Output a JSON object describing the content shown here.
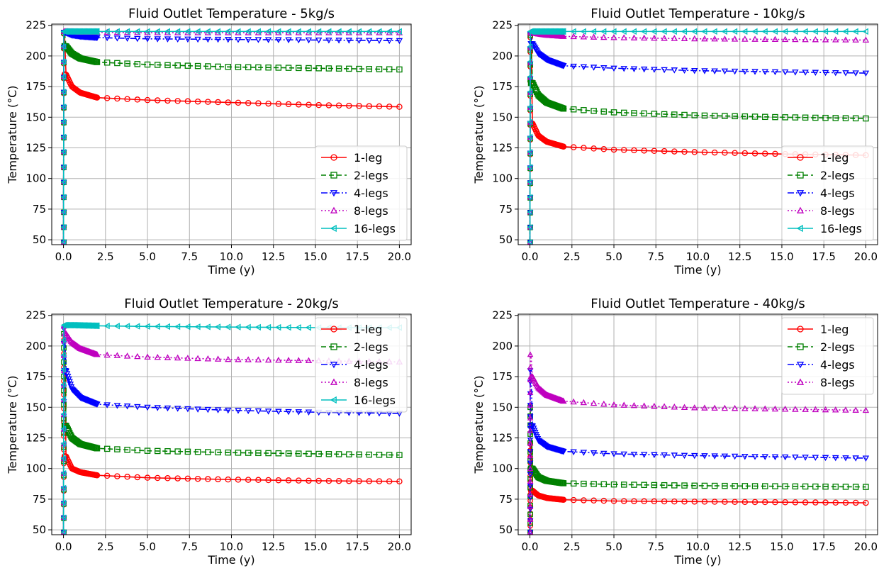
{
  "chart_data": [
    {
      "type": "line",
      "title": "Fluid Outlet Temperature - 5kg/s",
      "xlabel": "Time (y)",
      "ylabel": "Temperature (°C)",
      "xlim": [
        -0.7,
        20.7
      ],
      "ylim": [
        46,
        226
      ],
      "xticks": [
        0.0,
        2.5,
        5.0,
        7.5,
        10.0,
        12.5,
        15.0,
        17.5,
        20.0
      ],
      "xtick_labels": [
        "0.0",
        "2.5",
        "5.0",
        "7.5",
        "10.0",
        "12.5",
        "15.0",
        "17.5",
        "20.0"
      ],
      "yticks": [
        50,
        75,
        100,
        125,
        150,
        175,
        200,
        225
      ],
      "ytick_labels": [
        "50",
        "75",
        "100",
        "125",
        "150",
        "175",
        "200",
        "225"
      ],
      "grid": true,
      "legend": "lower-right",
      "series": [
        {
          "name": "1-leg",
          "peak": 218,
          "points": [
            [
              0.15,
              185
            ],
            [
              0.5,
              175
            ],
            [
              1,
              170
            ],
            [
              2,
              166
            ],
            [
              5,
              164
            ],
            [
              10,
              162
            ],
            [
              15,
              160
            ],
            [
              20,
              158.5
            ]
          ]
        },
        {
          "name": "2-legs",
          "peak": 219,
          "points": [
            [
              0.15,
              208
            ],
            [
              0.5,
              202
            ],
            [
              1,
              198
            ],
            [
              2,
              195
            ],
            [
              5,
              193
            ],
            [
              10,
              191
            ],
            [
              15,
              190
            ],
            [
              20,
              189
            ]
          ]
        },
        {
          "name": "4-legs",
          "peak": 219.5,
          "points": [
            [
              0.15,
              219
            ],
            [
              0.5,
              217
            ],
            [
              1,
              216
            ],
            [
              2,
              215
            ],
            [
              5,
              214
            ],
            [
              10,
              213.5
            ],
            [
              15,
              213
            ],
            [
              20,
              212.5
            ]
          ]
        },
        {
          "name": "8-legs",
          "peak": 220,
          "points": [
            [
              0.15,
              220
            ],
            [
              1,
              219.5
            ],
            [
              5,
              219
            ],
            [
              10,
              219
            ],
            [
              20,
              219
            ]
          ]
        },
        {
          "name": "16-legs",
          "peak": 220,
          "points": [
            [
              0.15,
              220
            ],
            [
              1,
              220
            ],
            [
              5,
              220
            ],
            [
              10,
              220
            ],
            [
              20,
              220
            ]
          ]
        }
      ]
    },
    {
      "type": "line",
      "title": "Fluid Outlet Temperature - 10kg/s",
      "xlabel": "Time (y)",
      "ylabel": "Temperature (°C)",
      "xlim": [
        -0.7,
        20.7
      ],
      "ylim": [
        46,
        226
      ],
      "xticks": [
        0.0,
        2.5,
        5.0,
        7.5,
        10.0,
        12.5,
        15.0,
        17.5,
        20.0
      ],
      "xtick_labels": [
        "0.0",
        "2.5",
        "5.0",
        "7.5",
        "10.0",
        "12.5",
        "15.0",
        "17.5",
        "20.0"
      ],
      "yticks": [
        50,
        75,
        100,
        125,
        150,
        175,
        200,
        225
      ],
      "ytick_labels": [
        "50",
        "75",
        "100",
        "125",
        "150",
        "175",
        "200",
        "225"
      ],
      "grid": true,
      "legend": "lower-right",
      "series": [
        {
          "name": "1-leg",
          "peak": 215,
          "points": [
            [
              0.15,
              145
            ],
            [
              0.5,
              135
            ],
            [
              1,
              130
            ],
            [
              2,
              126
            ],
            [
              5,
              123.5
            ],
            [
              10,
              121.5
            ],
            [
              15,
              120
            ],
            [
              20,
              119
            ]
          ]
        },
        {
          "name": "2-legs",
          "peak": 217,
          "points": [
            [
              0.15,
              178
            ],
            [
              0.5,
              168
            ],
            [
              1,
              162
            ],
            [
              2,
              157
            ],
            [
              5,
              154
            ],
            [
              10,
              151.5
            ],
            [
              15,
              150
            ],
            [
              20,
              149
            ]
          ]
        },
        {
          "name": "4-legs",
          "peak": 218,
          "points": [
            [
              0.15,
              210
            ],
            [
              0.5,
              202
            ],
            [
              1,
              197
            ],
            [
              2,
              192
            ],
            [
              5,
              190
            ],
            [
              10,
              188
            ],
            [
              15,
              187
            ],
            [
              20,
              186
            ]
          ]
        },
        {
          "name": "8-legs",
          "peak": 219,
          "points": [
            [
              0.15,
              219
            ],
            [
              0.5,
              218
            ],
            [
              1,
              217
            ],
            [
              2,
              216
            ],
            [
              5,
              215
            ],
            [
              10,
              214
            ],
            [
              15,
              213.5
            ],
            [
              20,
              213
            ]
          ]
        },
        {
          "name": "16-legs",
          "peak": 220,
          "points": [
            [
              0.15,
              220
            ],
            [
              1,
              220
            ],
            [
              5,
              220
            ],
            [
              10,
              220
            ],
            [
              20,
              220
            ]
          ]
        }
      ]
    },
    {
      "type": "line",
      "title": "Fluid Outlet Temperature - 20kg/s",
      "xlabel": "Time (y)",
      "ylabel": "Temperature (°C)",
      "xlim": [
        -0.7,
        20.7
      ],
      "ylim": [
        46,
        226
      ],
      "xticks": [
        0.0,
        2.5,
        5.0,
        7.5,
        10.0,
        12.5,
        15.0,
        17.5,
        20.0
      ],
      "xtick_labels": [
        "0.0",
        "2.5",
        "5.0",
        "7.5",
        "10.0",
        "12.5",
        "15.0",
        "17.5",
        "20.0"
      ],
      "yticks": [
        50,
        75,
        100,
        125,
        150,
        175,
        200,
        225
      ],
      "ytick_labels": [
        "50",
        "75",
        "100",
        "125",
        "150",
        "175",
        "200",
        "225"
      ],
      "grid": true,
      "legend": "upper-right",
      "series": [
        {
          "name": "1-leg",
          "peak": 205,
          "points": [
            [
              0.15,
              110
            ],
            [
              0.5,
              100
            ],
            [
              1,
              97
            ],
            [
              2,
              94.5
            ],
            [
              5,
              92.5
            ],
            [
              10,
              91
            ],
            [
              15,
              90
            ],
            [
              20,
              89.5
            ]
          ]
        },
        {
          "name": "2-legs",
          "peak": 210,
          "points": [
            [
              0.15,
              135
            ],
            [
              0.5,
              125
            ],
            [
              1,
              120
            ],
            [
              2,
              116.5
            ],
            [
              5,
              114.5
            ],
            [
              10,
              113
            ],
            [
              15,
              112
            ],
            [
              20,
              111
            ]
          ]
        },
        {
          "name": "4-legs",
          "peak": 214,
          "points": [
            [
              0.15,
              180
            ],
            [
              0.5,
              165
            ],
            [
              1,
              158
            ],
            [
              2,
              152.5
            ],
            [
              5,
              150
            ],
            [
              10,
              147.5
            ],
            [
              15,
              146
            ],
            [
              20,
              145
            ]
          ]
        },
        {
          "name": "8-legs",
          "peak": 216,
          "points": [
            [
              0.15,
              210
            ],
            [
              0.5,
              203
            ],
            [
              1,
              198
            ],
            [
              2,
              193
            ],
            [
              5,
              191
            ],
            [
              10,
              189
            ],
            [
              15,
              188
            ],
            [
              20,
              187
            ]
          ]
        },
        {
          "name": "16-legs",
          "peak": 217,
          "points": [
            [
              0.15,
              217
            ],
            [
              0.5,
              217
            ],
            [
              2,
              216.5
            ],
            [
              5,
              216
            ],
            [
              10,
              215.5
            ],
            [
              15,
              215
            ],
            [
              20,
              215
            ]
          ]
        }
      ]
    },
    {
      "type": "line",
      "title": "Fluid Outlet Temperature - 40kg/s",
      "xlabel": "Time (y)",
      "ylabel": "Temperature (°C)",
      "xlim": [
        -0.7,
        20.7
      ],
      "ylim": [
        46,
        226
      ],
      "xticks": [
        0.0,
        2.5,
        5.0,
        7.5,
        10.0,
        12.5,
        15.0,
        17.5,
        20.0
      ],
      "xtick_labels": [
        "0.0",
        "2.5",
        "5.0",
        "7.5",
        "10.0",
        "12.5",
        "15.0",
        "17.5",
        "20.0"
      ],
      "yticks": [
        50,
        75,
        100,
        125,
        150,
        175,
        200,
        225
      ],
      "ytick_labels": [
        "50",
        "75",
        "100",
        "125",
        "150",
        "175",
        "200",
        "225"
      ],
      "grid": true,
      "legend": "upper-right",
      "series": [
        {
          "name": "1-leg",
          "peak": 120,
          "points": [
            [
              0.15,
              82
            ],
            [
              0.5,
              78
            ],
            [
              1,
              76
            ],
            [
              2,
              74.5
            ],
            [
              5,
              73.5
            ],
            [
              10,
              73
            ],
            [
              15,
              72.5
            ],
            [
              20,
              72
            ]
          ]
        },
        {
          "name": "2-legs",
          "peak": 150,
          "points": [
            [
              0.15,
              100
            ],
            [
              0.5,
              93
            ],
            [
              1,
              90
            ],
            [
              2,
              88
            ],
            [
              5,
              87
            ],
            [
              10,
              86
            ],
            [
              15,
              85.5
            ],
            [
              20,
              85
            ]
          ]
        },
        {
          "name": "4-legs",
          "peak": 180,
          "points": [
            [
              0.15,
              135
            ],
            [
              0.5,
              123
            ],
            [
              1,
              118
            ],
            [
              2,
              114
            ],
            [
              5,
              112
            ],
            [
              10,
              110.5
            ],
            [
              15,
              109.5
            ],
            [
              20,
              108.5
            ]
          ]
        },
        {
          "name": "8-legs",
          "peak": 193,
          "points": [
            [
              0.15,
              175
            ],
            [
              0.5,
              166
            ],
            [
              1,
              160
            ],
            [
              2,
              155
            ],
            [
              5,
              152
            ],
            [
              10,
              149.5
            ],
            [
              15,
              148.5
            ],
            [
              20,
              147.5
            ]
          ]
        }
      ]
    }
  ],
  "style": {
    "colors": {
      "1-leg": "#ff0000",
      "2-legs": "#008000",
      "4-legs": "#0000ff",
      "8-legs": "#bf00bf",
      "16-legs": "#00bfbf"
    },
    "markers": {
      "1-leg": "circle",
      "2-legs": "square",
      "4-legs": "triangle-down",
      "8-legs": "triangle-up",
      "16-legs": "triangle-left"
    },
    "dashes": {
      "1-leg": "solid",
      "2-legs": "dashed",
      "4-legs": "dash-dot",
      "8-legs": "dotted",
      "16-legs": "solid"
    }
  }
}
